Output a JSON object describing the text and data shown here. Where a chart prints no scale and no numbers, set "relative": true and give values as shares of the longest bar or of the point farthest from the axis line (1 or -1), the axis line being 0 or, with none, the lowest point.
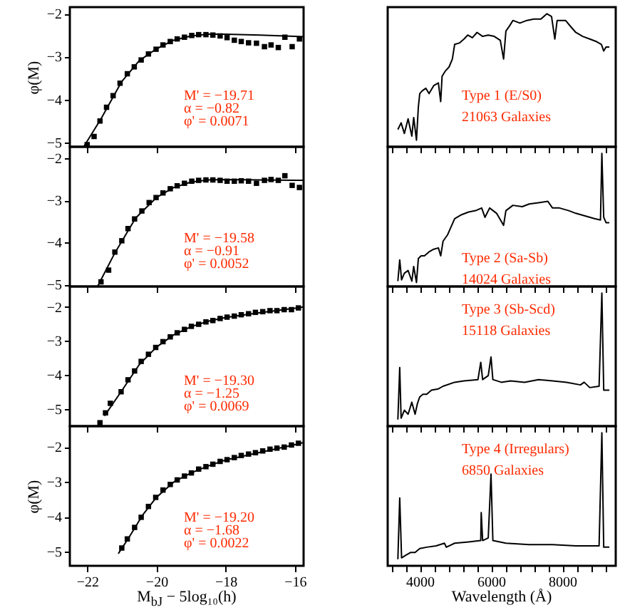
{
  "chart_data": [
    {
      "type": "scatter",
      "ylabel": "φ(M)",
      "xlim": [
        -22.5,
        -15.75
      ],
      "xticks": [
        -22,
        -20,
        -18,
        -16
      ],
      "ylim": [
        -5.1,
        -1.85
      ],
      "yticks": [
        -2,
        -3,
        -4,
        -5
      ],
      "tick_labels": "y",
      "marker": "square",
      "annotations": [
        "M' = −19.71",
        "α = −0.82",
        "φ' = 0.0071"
      ],
      "series": [
        {
          "type": "scatter",
          "color": "#000000",
          "x": [
            -22.0,
            -21.8,
            -21.63,
            -21.44,
            -21.25,
            -21.05,
            -20.84,
            -20.64,
            -20.44,
            -20.23,
            -20.01,
            -19.81,
            -19.6,
            -19.4,
            -19.19,
            -18.98,
            -18.78,
            -18.57,
            -18.37,
            -18.16,
            -17.96,
            -17.75,
            -17.55,
            -17.34,
            -17.11,
            -16.88,
            -16.69,
            -16.48,
            -16.29,
            -16.08,
            -15.87
          ],
          "values": [
            -5.05,
            -4.86,
            -4.5,
            -4.18,
            -3.91,
            -3.62,
            -3.4,
            -3.24,
            -3.08,
            -2.94,
            -2.83,
            -2.73,
            -2.65,
            -2.59,
            -2.55,
            -2.51,
            -2.49,
            -2.49,
            -2.5,
            -2.52,
            -2.56,
            -2.62,
            -2.65,
            -2.68,
            -2.69,
            -2.77,
            -2.73,
            -2.79,
            -2.55,
            -2.77,
            -2.59
          ]
        },
        {
          "type": "line",
          "marker": "none",
          "color": "#000000",
          "x": [
            -22.1,
            -21.6,
            -21,
            -20.5,
            -20,
            -19.5,
            -19,
            -18.5,
            -18,
            -17,
            -16,
            -15.75
          ],
          "values": [
            -5.1,
            -4.45,
            -3.58,
            -3.1,
            -2.82,
            -2.62,
            -2.52,
            -2.48,
            -2.48,
            -2.5,
            -2.53,
            -2.54
          ]
        }
      ]
    },
    {
      "type": "scatter",
      "xlim": [
        -22.5,
        -15.75
      ],
      "xticks": [
        -22,
        -20,
        -18,
        -16
      ],
      "ylim": [
        -5.05,
        -1.72
      ],
      "yticks": [
        -2,
        -3,
        -4,
        -5
      ],
      "tick_labels": "y",
      "marker": "square",
      "annotations": [
        "M' = −19.58",
        "α = −0.91",
        "φ' = 0.0052"
      ],
      "series": [
        {
          "type": "scatter",
          "color": "#000000",
          "x": [
            -21.6,
            -21.38,
            -21.2,
            -21.0,
            -20.82,
            -20.63,
            -20.42,
            -20.21,
            -20.01,
            -19.81,
            -19.6,
            -19.4,
            -19.19,
            -18.98,
            -18.78,
            -18.57,
            -18.37,
            -18.16,
            -17.96,
            -17.75,
            -17.55,
            -17.34,
            -17.11,
            -16.88,
            -16.69,
            -16.48,
            -16.29,
            -16.08,
            -15.87
          ],
          "values": [
            -4.94,
            -4.66,
            -4.23,
            -3.96,
            -3.67,
            -3.44,
            -3.25,
            -3.05,
            -2.93,
            -2.82,
            -2.72,
            -2.65,
            -2.59,
            -2.54,
            -2.52,
            -2.51,
            -2.51,
            -2.52,
            -2.54,
            -2.54,
            -2.53,
            -2.54,
            -2.59,
            -2.52,
            -2.5,
            -2.52,
            -2.41,
            -2.64,
            -2.69
          ]
        },
        {
          "type": "line",
          "marker": "none",
          "color": "#000000",
          "x": [
            -21.7,
            -21.2,
            -20.6,
            -20,
            -19.5,
            -19,
            -18.5,
            -18,
            -17,
            -16,
            -15.75
          ],
          "values": [
            -5.05,
            -4.25,
            -3.42,
            -2.93,
            -2.69,
            -2.56,
            -2.51,
            -2.5,
            -2.51,
            -2.52,
            -2.52
          ]
        }
      ]
    },
    {
      "type": "scatter",
      "xlim": [
        -22.5,
        -15.75
      ],
      "xticks": [
        -22,
        -20,
        -18,
        -16
      ],
      "ylim": [
        -5.5,
        -1.4
      ],
      "yticks": [
        -2,
        -3,
        -4,
        -5
      ],
      "tick_labels": "y",
      "marker": "square",
      "annotations": [
        "M' = −19.30",
        "α = −1.25",
        "φ' = 0.0069"
      ],
      "series": [
        {
          "type": "scatter",
          "color": "#000000",
          "x": [
            -21.63,
            -21.47,
            -21.33,
            -21.02,
            -20.82,
            -20.63,
            -20.44,
            -20.23,
            -20.02,
            -19.81,
            -19.6,
            -19.4,
            -19.19,
            -18.99,
            -18.78,
            -18.57,
            -18.37,
            -18.16,
            -17.96,
            -17.75,
            -17.55,
            -17.34,
            -17.14,
            -16.93,
            -16.72,
            -16.52,
            -16.31,
            -16.1,
            -15.9
          ],
          "values": [
            -5.4,
            -5.11,
            -4.83,
            -4.49,
            -4.14,
            -3.88,
            -3.6,
            -3.39,
            -3.19,
            -3.02,
            -2.88,
            -2.76,
            -2.66,
            -2.57,
            -2.51,
            -2.44,
            -2.4,
            -2.34,
            -2.3,
            -2.27,
            -2.23,
            -2.2,
            -2.16,
            -2.14,
            -2.11,
            -2.11,
            -2.08,
            -2.08,
            -2.03
          ]
        },
        {
          "type": "line",
          "marker": "none",
          "color": "#000000",
          "x": [
            -21.5,
            -21,
            -20.5,
            -20,
            -19.5,
            -19,
            -18.5,
            -18,
            -17,
            -16,
            -15.75
          ],
          "values": [
            -5.2,
            -4.46,
            -3.7,
            -3.18,
            -2.82,
            -2.58,
            -2.42,
            -2.31,
            -2.17,
            -2.04,
            -2.0
          ]
        }
      ]
    },
    {
      "type": "scatter",
      "ylabel": "φ(M)",
      "xlabel": "M$_{bJ}$ − 5log₁₀(h)",
      "xlim": [
        -22.5,
        -15.75
      ],
      "xticks": [
        -22,
        -20,
        -18,
        -16
      ],
      "ylim": [
        -5.4,
        -1.4
      ],
      "yticks": [
        -2,
        -3,
        -4,
        -5
      ],
      "marker": "square",
      "annotations": [
        "M' = −19.20",
        "α = −1.68",
        "φ' = 0.0022"
      ],
      "series": [
        {
          "type": "scatter",
          "color": "#000000",
          "x": [
            -21.0,
            -20.84,
            -20.63,
            -20.44,
            -20.23,
            -20.02,
            -19.81,
            -19.6,
            -19.4,
            -19.19,
            -18.99,
            -18.78,
            -18.57,
            -18.37,
            -18.16,
            -17.96,
            -17.75,
            -17.55,
            -17.34,
            -17.14,
            -16.93,
            -16.72,
            -16.52,
            -16.31,
            -16.1,
            -15.9
          ],
          "values": [
            -4.89,
            -4.63,
            -4.3,
            -4.01,
            -3.7,
            -3.44,
            -3.23,
            -3.07,
            -2.94,
            -2.83,
            -2.74,
            -2.63,
            -2.56,
            -2.49,
            -2.41,
            -2.36,
            -2.3,
            -2.24,
            -2.2,
            -2.16,
            -2.11,
            -2.06,
            -2.03,
            -2.0,
            -1.94,
            -1.89
          ]
        },
        {
          "type": "line",
          "marker": "none",
          "color": "#000000",
          "x": [
            -21.1,
            -20.8,
            -20.4,
            -20,
            -19.5,
            -19,
            -18.5,
            -18,
            -17,
            -16,
            -15.75
          ],
          "values": [
            -5.05,
            -4.6,
            -3.95,
            -3.44,
            -3.0,
            -2.74,
            -2.54,
            -2.37,
            -2.15,
            -1.93,
            -1.87
          ]
        }
      ]
    },
    {
      "type": "line",
      "relative": true,
      "line_style": "solid",
      "xlim": [
        3100,
        9500
      ],
      "xticks": [
        {
          "value": 3200,
          "label": null
        },
        {
          "value": 3600,
          "label": null
        },
        4000,
        {
          "value": 4400,
          "label": null
        },
        {
          "value": 4800,
          "label": null
        },
        {
          "value": 5200,
          "label": null
        },
        {
          "value": 5600,
          "label": null
        },
        6000,
        {
          "value": 6400,
          "label": null
        },
        {
          "value": 6800,
          "label": null
        },
        {
          "value": 7200,
          "label": null
        },
        {
          "value": 7600,
          "label": null
        },
        8000,
        {
          "value": 8400,
          "label": null
        },
        {
          "value": 8800,
          "label": null
        },
        {
          "value": 9200,
          "label": null
        }
      ],
      "tick_labels": false,
      "annotations": [
        "Type 1 (E/S0)",
        "21063 Galaxies"
      ],
      "series": [
        {
          "color": "#000000",
          "x": [
            3386,
            3477,
            3569,
            3673,
            3778,
            3830,
            3908,
            3961,
            4000,
            4065,
            4170,
            4261,
            4392,
            4523,
            4588,
            4627,
            4719,
            4823,
            4915,
            4980,
            5111,
            5242,
            5346,
            5477,
            5608,
            5765,
            5922,
            6092,
            6261,
            6353,
            6418,
            6523,
            6614,
            6810,
            7006,
            7202,
            7399,
            7569,
            7699,
            7791,
            7856,
            8091,
            8248,
            8379,
            8575,
            8771,
            8967,
            9098,
            9163,
            9228,
            9320
          ],
          "values": [
            0.13,
            0.18,
            0.1,
            0.21,
            0.08,
            0.22,
            0.05,
            0.3,
            0.4,
            0.42,
            0.44,
            0.4,
            0.46,
            0.48,
            0.34,
            0.53,
            0.57,
            0.6,
            0.66,
            0.77,
            0.78,
            0.81,
            0.84,
            0.82,
            0.86,
            0.83,
            0.84,
            0.83,
            0.8,
            0.66,
            0.87,
            0.91,
            0.95,
            0.93,
            0.95,
            0.96,
            0.96,
            1.0,
            0.98,
            0.81,
            0.95,
            0.95,
            0.9,
            0.86,
            0.83,
            0.81,
            0.79,
            0.77,
            0.72,
            0.75,
            0.75
          ]
        }
      ]
    },
    {
      "type": "line",
      "relative": true,
      "line_style": "solid",
      "xlim": [
        3100,
        9500
      ],
      "xticks": [
        {
          "value": 3200,
          "label": null
        },
        {
          "value": 3600,
          "label": null
        },
        4000,
        {
          "value": 4400,
          "label": null
        },
        {
          "value": 4800,
          "label": null
        },
        {
          "value": 5200,
          "label": null
        },
        {
          "value": 5600,
          "label": null
        },
        6000,
        {
          "value": 6400,
          "label": null
        },
        {
          "value": 6800,
          "label": null
        },
        {
          "value": 7200,
          "label": null
        },
        {
          "value": 7600,
          "label": null
        },
        8000,
        {
          "value": 8400,
          "label": null
        },
        {
          "value": 8800,
          "label": null
        },
        {
          "value": 9200,
          "label": null
        }
      ],
      "tick_labels": false,
      "annotations": [
        "Type 2 (Sa-Sb)",
        "14024 Galaxies"
      ],
      "series": [
        {
          "color": "#000000",
          "x": [
            3386,
            3438,
            3490,
            3569,
            3673,
            3778,
            3830,
            3908,
            3961,
            4039,
            4131,
            4261,
            4392,
            4523,
            4588,
            4654,
            4784,
            4980,
            5176,
            5372,
            5568,
            5738,
            5830,
            5961,
            6157,
            6353,
            6418,
            6614,
            6876,
            7072,
            7333,
            7595,
            7725,
            7921,
            8183,
            8379,
            8640,
            8902,
            9072,
            9111,
            9163,
            9228,
            9320
          ],
          "values": [
            0.04,
            0.2,
            0.05,
            0.1,
            0.12,
            0.04,
            0.15,
            0.03,
            0.21,
            0.23,
            0.23,
            0.26,
            0.28,
            0.29,
            0.23,
            0.34,
            0.39,
            0.51,
            0.54,
            0.56,
            0.57,
            0.59,
            0.52,
            0.59,
            0.55,
            0.46,
            0.57,
            0.61,
            0.6,
            0.62,
            0.63,
            0.64,
            0.59,
            0.59,
            0.57,
            0.55,
            0.53,
            0.51,
            0.5,
            1.0,
            0.52,
            0.48,
            0.48
          ]
        }
      ]
    },
    {
      "type": "line",
      "relative": true,
      "line_style": "solid",
      "xlim": [
        3100,
        9500
      ],
      "xticks": [
        {
          "value": 3200,
          "label": null
        },
        {
          "value": 3600,
          "label": null
        },
        4000,
        {
          "value": 4400,
          "label": null
        },
        {
          "value": 4800,
          "label": null
        },
        {
          "value": 5200,
          "label": null
        },
        {
          "value": 5600,
          "label": null
        },
        6000,
        {
          "value": 6400,
          "label": null
        },
        {
          "value": 6800,
          "label": null
        },
        {
          "value": 7200,
          "label": null
        },
        {
          "value": 7600,
          "label": null
        },
        8000,
        {
          "value": 8400,
          "label": null
        },
        {
          "value": 8800,
          "label": null
        },
        {
          "value": 9200,
          "label": null
        }
      ],
      "tick_labels": false,
      "annotations": [
        "Type 3 (Sb-Scd)",
        "15118 Galaxies"
      ],
      "series": [
        {
          "color": "#000000",
          "x": [
            3386,
            3438,
            3477,
            3569,
            3673,
            3778,
            3869,
            3935,
            4000,
            4091,
            4196,
            4327,
            4523,
            4654,
            4980,
            5242,
            5634,
            5712,
            5765,
            5922,
            6000,
            6052,
            6288,
            6549,
            6941,
            7333,
            7725,
            8118,
            8510,
            8614,
            8771,
            9033,
            9111,
            9163,
            9320
          ],
          "values": [
            0.05,
            0.44,
            0.06,
            0.12,
            0.09,
            0.18,
            0.09,
            0.17,
            0.22,
            0.24,
            0.24,
            0.27,
            0.28,
            0.3,
            0.33,
            0.34,
            0.35,
            0.48,
            0.35,
            0.38,
            0.52,
            0.35,
            0.33,
            0.34,
            0.33,
            0.35,
            0.34,
            0.33,
            0.31,
            0.33,
            0.29,
            0.3,
            1.0,
            0.27,
            0.27
          ]
        }
      ]
    },
    {
      "type": "line",
      "relative": true,
      "line_style": "solid",
      "xlabel": "Wavelength (Å)",
      "xlim": [
        3100,
        9500
      ],
      "xticks": [
        {
          "value": 3200,
          "label": null
        },
        {
          "value": 3600,
          "label": null
        },
        4000,
        {
          "value": 4400,
          "label": null
        },
        {
          "value": 4800,
          "label": null
        },
        {
          "value": 5200,
          "label": null
        },
        {
          "value": 5600,
          "label": null
        },
        6000,
        {
          "value": 6400,
          "label": null
        },
        {
          "value": 6800,
          "label": null
        },
        {
          "value": 7200,
          "label": null
        },
        {
          "value": 7600,
          "label": null
        },
        8000,
        {
          "value": 8400,
          "label": null
        },
        {
          "value": 8800,
          "label": null
        },
        {
          "value": 9200,
          "label": null
        }
      ],
      "tick_labels": "x",
      "annotations": [
        "Type 4 (Irregulars)",
        "6850 Galaxies"
      ],
      "series": [
        {
          "color": "#000000",
          "x": [
            3386,
            3438,
            3490,
            3608,
            3739,
            3869,
            4000,
            4196,
            4458,
            4693,
            4745,
            4980,
            5372,
            5712,
            5725,
            5765,
            5922,
            6000,
            6052,
            6418,
            7072,
            7725,
            8379,
            8771,
            9033,
            9111,
            9163,
            9320
          ],
          "values": [
            0.05,
            0.51,
            0.06,
            0.08,
            0.1,
            0.1,
            0.13,
            0.14,
            0.15,
            0.17,
            0.14,
            0.17,
            0.18,
            0.19,
            0.4,
            0.19,
            0.21,
            0.69,
            0.19,
            0.17,
            0.16,
            0.16,
            0.15,
            0.15,
            0.15,
            1.0,
            0.14,
            0.14
          ]
        }
      ]
    }
  ]
}
